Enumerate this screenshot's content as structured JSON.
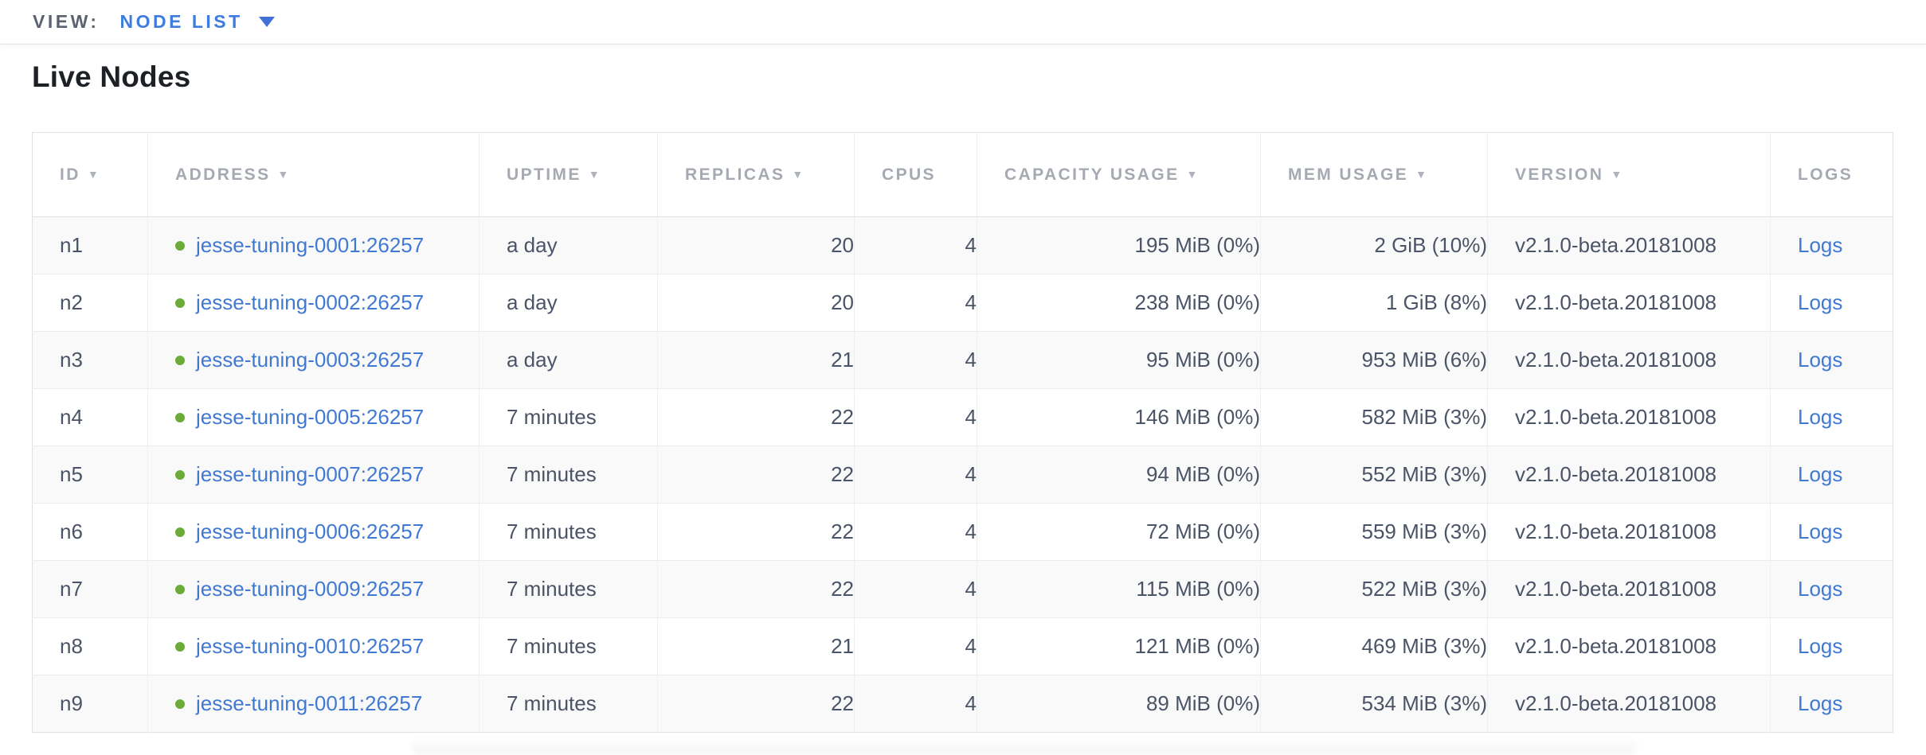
{
  "topbar": {
    "view_label": "VIEW:",
    "view_value": "NODE LIST"
  },
  "page": {
    "title": "Live Nodes"
  },
  "table": {
    "columns": [
      {
        "key": "id",
        "label": "ID",
        "sortable": true,
        "align": "left"
      },
      {
        "key": "address",
        "label": "ADDRESS",
        "sortable": true,
        "align": "left"
      },
      {
        "key": "uptime",
        "label": "UPTIME",
        "sortable": true,
        "align": "left"
      },
      {
        "key": "replicas",
        "label": "REPLICAS",
        "sortable": true,
        "align": "right"
      },
      {
        "key": "cpus",
        "label": "CPUS",
        "sortable": false,
        "align": "right"
      },
      {
        "key": "capacity",
        "label": "CAPACITY USAGE",
        "sortable": true,
        "align": "right"
      },
      {
        "key": "mem",
        "label": "MEM USAGE",
        "sortable": true,
        "align": "right"
      },
      {
        "key": "version",
        "label": "VERSION",
        "sortable": true,
        "align": "left"
      },
      {
        "key": "logs",
        "label": "LOGS",
        "sortable": false,
        "align": "left"
      }
    ],
    "rows": [
      {
        "id": "n1",
        "address": "jesse-tuning-0001:26257",
        "uptime": "a day",
        "replicas": "20",
        "cpus": "4",
        "capacity": "195 MiB (0%)",
        "mem": "2 GiB (10%)",
        "version": "v2.1.0-beta.20181008",
        "logs": "Logs"
      },
      {
        "id": "n2",
        "address": "jesse-tuning-0002:26257",
        "uptime": "a day",
        "replicas": "20",
        "cpus": "4",
        "capacity": "238 MiB (0%)",
        "mem": "1 GiB (8%)",
        "version": "v2.1.0-beta.20181008",
        "logs": "Logs"
      },
      {
        "id": "n3",
        "address": "jesse-tuning-0003:26257",
        "uptime": "a day",
        "replicas": "21",
        "cpus": "4",
        "capacity": "95 MiB (0%)",
        "mem": "953 MiB (6%)",
        "version": "v2.1.0-beta.20181008",
        "logs": "Logs"
      },
      {
        "id": "n4",
        "address": "jesse-tuning-0005:26257",
        "uptime": "7 minutes",
        "replicas": "22",
        "cpus": "4",
        "capacity": "146 MiB (0%)",
        "mem": "582 MiB (3%)",
        "version": "v2.1.0-beta.20181008",
        "logs": "Logs"
      },
      {
        "id": "n5",
        "address": "jesse-tuning-0007:26257",
        "uptime": "7 minutes",
        "replicas": "22",
        "cpus": "4",
        "capacity": "94 MiB (0%)",
        "mem": "552 MiB (3%)",
        "version": "v2.1.0-beta.20181008",
        "logs": "Logs"
      },
      {
        "id": "n6",
        "address": "jesse-tuning-0006:26257",
        "uptime": "7 minutes",
        "replicas": "22",
        "cpus": "4",
        "capacity": "72 MiB (0%)",
        "mem": "559 MiB (3%)",
        "version": "v2.1.0-beta.20181008",
        "logs": "Logs"
      },
      {
        "id": "n7",
        "address": "jesse-tuning-0009:26257",
        "uptime": "7 minutes",
        "replicas": "22",
        "cpus": "4",
        "capacity": "115 MiB (0%)",
        "mem": "522 MiB (3%)",
        "version": "v2.1.0-beta.20181008",
        "logs": "Logs"
      },
      {
        "id": "n8",
        "address": "jesse-tuning-0010:26257",
        "uptime": "7 minutes",
        "replicas": "21",
        "cpus": "4",
        "capacity": "121 MiB (0%)",
        "mem": "469 MiB (3%)",
        "version": "v2.1.0-beta.20181008",
        "logs": "Logs"
      },
      {
        "id": "n9",
        "address": "jesse-tuning-0011:26257",
        "uptime": "7 minutes",
        "replicas": "22",
        "cpus": "4",
        "capacity": "89 MiB (0%)",
        "mem": "534 MiB (3%)",
        "version": "v2.1.0-beta.20181008",
        "logs": "Logs"
      }
    ]
  },
  "icons": {
    "sort_desc": "▼",
    "dropdown_caret": "caret-down-icon",
    "live_status": "live-dot-icon"
  },
  "colors": {
    "link_blue": "#4179d2",
    "accent_blue": "#3e7cdf",
    "live_dot_green": "#6cab35",
    "header_gray": "#a5a9b1",
    "body_text": "#4a5466",
    "zebra_row": "#f9f9f9"
  }
}
